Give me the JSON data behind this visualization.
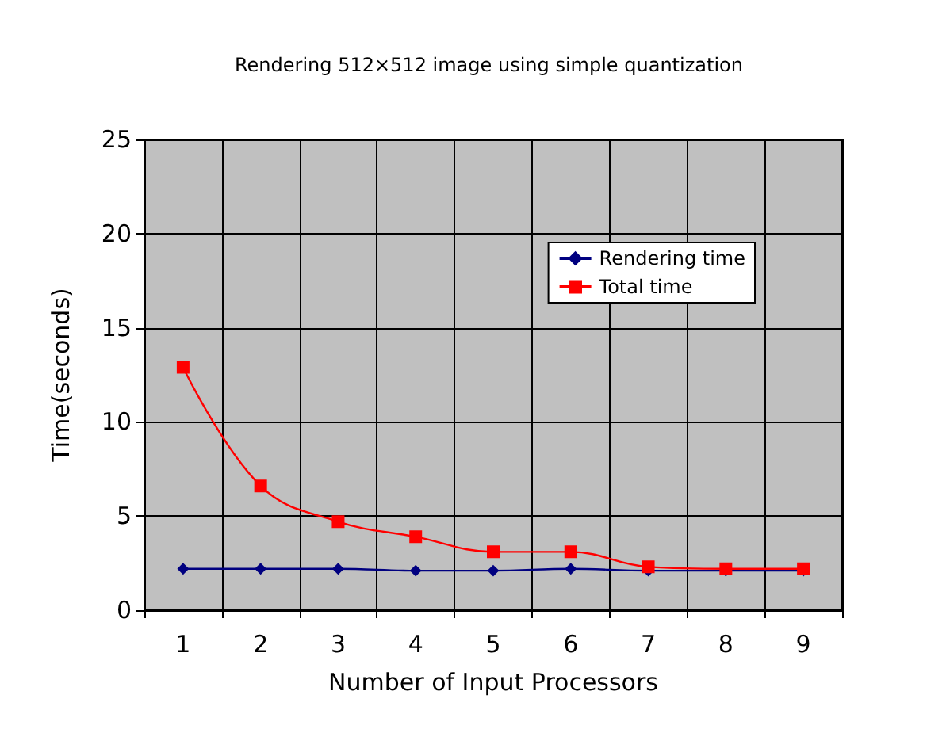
{
  "chart_data": {
    "type": "line",
    "title": "Rendering 512×512 image using simple quantization",
    "xlabel": "Number of Input Processors",
    "ylabel": "Time(seconds)",
    "categories": [
      "1",
      "2",
      "3",
      "4",
      "5",
      "6",
      "7",
      "8",
      "9"
    ],
    "series": [
      {
        "name": "Rendering time",
        "color": "#000080",
        "marker": "diamond",
        "values": [
          2.2,
          2.2,
          2.2,
          2.1,
          2.1,
          2.2,
          2.1,
          2.1,
          2.1
        ]
      },
      {
        "name": "Total time",
        "color": "#ff0000",
        "marker": "square",
        "values": [
          12.9,
          6.6,
          4.7,
          3.9,
          3.1,
          3.1,
          2.3,
          2.2,
          2.2
        ]
      }
    ],
    "ylim": [
      0,
      25
    ],
    "yticks": [
      0,
      5,
      10,
      15,
      20,
      25
    ],
    "grid": true,
    "legend": "top right"
  }
}
